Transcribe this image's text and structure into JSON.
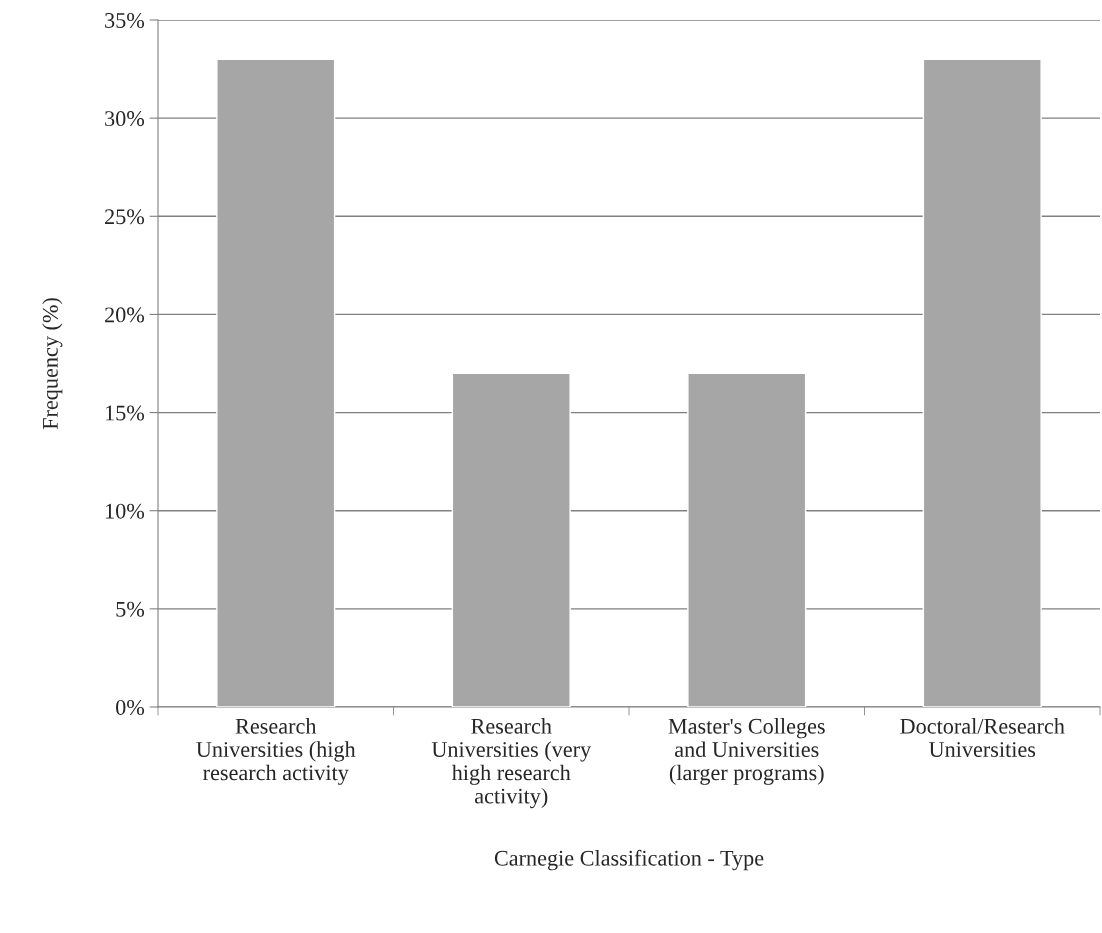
{
  "chart_data": {
    "type": "bar",
    "xlabel": "Carnegie Classification - Type",
    "ylabel": "Frequency (%)",
    "categories": [
      "Research\nUniversities (high\nresearch activity",
      "Research\nUniversities (very\nhigh research\nactivity)",
      "Master's Colleges\nand Universities\n(larger programs)",
      "Doctoral/Research\nUniversities"
    ],
    "values": [
      33,
      17,
      17,
      33
    ],
    "color": "#a6a6a6",
    "ylim": [
      0,
      35
    ],
    "yticks": [
      {
        "value": 0,
        "label": "0%"
      },
      {
        "value": 5,
        "label": "5%"
      },
      {
        "value": 10,
        "label": "10%"
      },
      {
        "value": 15,
        "label": "15%"
      },
      {
        "value": 20,
        "label": "20%"
      },
      {
        "value": 25,
        "label": "25%"
      },
      {
        "value": 30,
        "label": "30%"
      },
      {
        "value": 35,
        "label": "35%"
      }
    ],
    "grid": "y",
    "legend": false
  }
}
